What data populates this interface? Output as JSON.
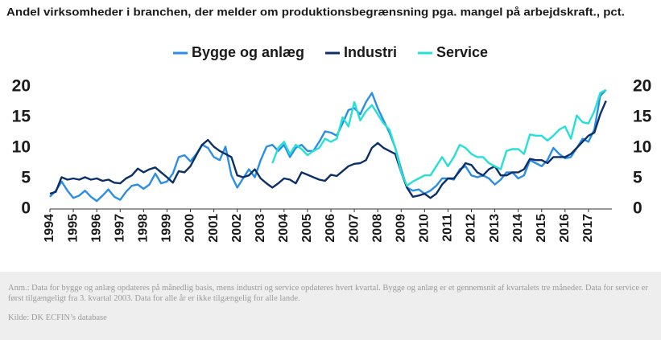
{
  "chart_data": {
    "type": "line",
    "title": "Andel virksomheder i branchen, der melder om produktionsbegrænsning pga. mangel på arbejdskraft., pct.",
    "note": "Anm.: Data for bygge og anlæg opdateres på månedlig basis, mens industri og service opdateres hvert kvartal. Bygge og anlæg er et gennemsnit af kvartalets tre måneder. Data for service er først tilgængeligt fra 3. kvartal 2003. Data for alle år er ikke tilgængelig for alle lande.",
    "source": "Kilde: DK ECFIN’s database",
    "x": [
      1994,
      1994.25,
      1994.5,
      1994.75,
      1995,
      1995.25,
      1995.5,
      1995.75,
      1996,
      1996.25,
      1996.5,
      1996.75,
      1997,
      1997.25,
      1997.5,
      1997.75,
      1998,
      1998.25,
      1998.5,
      1998.75,
      1999,
      1999.25,
      1999.5,
      1999.75,
      2000,
      2000.25,
      2000.5,
      2000.75,
      2001,
      2001.25,
      2001.5,
      2001.75,
      2002,
      2002.25,
      2002.5,
      2002.75,
      2003,
      2003.25,
      2003.5,
      2003.75,
      2004,
      2004.25,
      2004.5,
      2004.75,
      2005,
      2005.25,
      2005.5,
      2005.75,
      2006,
      2006.25,
      2006.5,
      2006.75,
      2007,
      2007.25,
      2007.5,
      2007.75,
      2008,
      2008.25,
      2008.5,
      2008.75,
      2009,
      2009.25,
      2009.5,
      2009.75,
      2010,
      2010.25,
      2010.5,
      2010.75,
      2011,
      2011.25,
      2011.5,
      2011.75,
      2012,
      2012.25,
      2012.5,
      2012.75,
      2013,
      2013.25,
      2013.5,
      2013.75,
      2014,
      2014.25,
      2014.5,
      2014.75,
      2015,
      2015.25,
      2015.5,
      2015.75,
      2016,
      2016.25,
      2016.5,
      2016.75,
      2017,
      2017.25,
      2017.5,
      2017.75
    ],
    "series": [
      {
        "name": "Bygge og anlæg",
        "color": "#2b8ee6",
        "values": [
          2.0,
          3.0,
          4.5,
          3.0,
          1.8,
          2.2,
          3.0,
          2.0,
          1.3,
          2.2,
          3.2,
          2.0,
          1.5,
          2.8,
          3.8,
          4.0,
          3.3,
          4.0,
          5.8,
          4.2,
          4.5,
          5.8,
          8.5,
          8.8,
          7.8,
          9.0,
          10.5,
          10.0,
          8.5,
          8.0,
          10.2,
          5.5,
          3.5,
          5.0,
          6.5,
          5.2,
          8.0,
          10.2,
          10.5,
          9.5,
          10.5,
          8.5,
          10.0,
          10.5,
          9.5,
          9.5,
          11.0,
          12.7,
          12.5,
          12.0,
          14.0,
          16.2,
          16.5,
          15.5,
          17.5,
          19.0,
          16.5,
          14.5,
          12.5,
          10.0,
          6.5,
          3.5,
          3.0,
          3.2,
          2.5,
          3.0,
          3.8,
          5.0,
          5.0,
          4.8,
          6.5,
          7.0,
          5.5,
          5.2,
          5.5,
          5.0,
          4.0,
          4.8,
          6.0,
          6.0,
          5.0,
          5.5,
          8.0,
          7.5,
          7.0,
          8.0,
          10.0,
          9.0,
          8.3,
          8.5,
          10.0,
          11.5,
          11.0,
          13.0,
          18.5,
          19.5
        ]
      },
      {
        "name": "Industri",
        "color": "#0c2f6b",
        "values": [
          2.5,
          2.8,
          5.2,
          4.8,
          5.0,
          4.8,
          5.2,
          4.8,
          5.0,
          4.6,
          4.8,
          4.3,
          4.2,
          5.0,
          5.5,
          6.6,
          6.0,
          6.5,
          6.8,
          6.0,
          5.2,
          4.3,
          6.2,
          6.0,
          7.0,
          8.8,
          10.5,
          11.3,
          10.2,
          9.5,
          9.0,
          8.5,
          5.5,
          5.2,
          5.5,
          6.5,
          5.0,
          4.2,
          3.5,
          4.2,
          5.0,
          4.8,
          4.2,
          6.0,
          5.6,
          5.2,
          4.8,
          4.6,
          5.6,
          5.4,
          6.2,
          7.0,
          7.4,
          7.5,
          8.0,
          10.0,
          10.8,
          10.0,
          9.5,
          9.0,
          6.0,
          3.5,
          2.0,
          2.2,
          2.5,
          1.8,
          2.5,
          4.0,
          5.0,
          5.0,
          6.2,
          7.5,
          7.2,
          6.0,
          5.5,
          6.5,
          7.0,
          5.5,
          5.5,
          6.0,
          6.0,
          6.5,
          8.2,
          8.0,
          8.0,
          7.5,
          8.5,
          8.5,
          8.5,
          9.0,
          10.0,
          11.0,
          12.0,
          12.5,
          15.5,
          17.7
        ]
      },
      {
        "name": "Service",
        "color": "#26e0d6",
        "values": [
          null,
          null,
          null,
          null,
          null,
          null,
          null,
          null,
          null,
          null,
          null,
          null,
          null,
          null,
          null,
          null,
          null,
          null,
          null,
          null,
          null,
          null,
          null,
          null,
          null,
          null,
          null,
          null,
          null,
          null,
          null,
          null,
          null,
          null,
          null,
          null,
          null,
          null,
          7.5,
          10.0,
          11.0,
          9.0,
          10.5,
          9.8,
          8.8,
          9.5,
          10.0,
          11.5,
          11.0,
          11.5,
          15.0,
          13.5,
          17.5,
          14.5,
          16.0,
          17.0,
          15.5,
          14.0,
          13.0,
          10.0,
          6.0,
          3.8,
          4.5,
          5.0,
          5.5,
          5.5,
          7.0,
          8.5,
          7.0,
          8.5,
          10.5,
          10.0,
          9.0,
          8.5,
          8.5,
          7.5,
          7.0,
          6.5,
          9.5,
          9.8,
          9.8,
          9.0,
          12.2,
          12.0,
          12.0,
          11.2,
          12.0,
          13.0,
          13.5,
          11.5,
          15.3,
          14.2,
          14.0,
          16.0,
          19.0,
          19.5
        ]
      }
    ],
    "xlim": [
      1994,
      2018
    ],
    "xticks": [
      1994,
      1995,
      1996,
      1997,
      1998,
      1999,
      2000,
      2001,
      2002,
      2003,
      2004,
      2005,
      2006,
      2007,
      2008,
      2009,
      2010,
      2011,
      2012,
      2013,
      2014,
      2015,
      2016,
      2017
    ],
    "ylim": [
      0,
      20
    ],
    "yticks": [
      0,
      5,
      10,
      15,
      20
    ],
    "y2lim": [
      0,
      20
    ],
    "y2ticks": [
      0,
      5,
      10,
      15,
      20
    ],
    "legend": "top"
  }
}
